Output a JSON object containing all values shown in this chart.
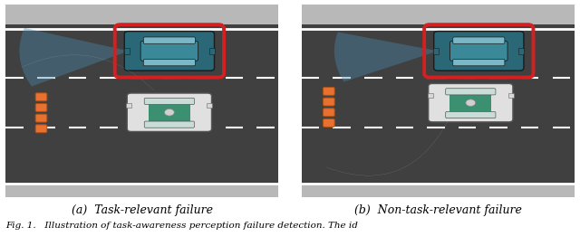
{
  "fig_width": 6.4,
  "fig_height": 2.72,
  "dpi": 100,
  "bg_color": "#ffffff",
  "road_color": "#404040",
  "road_border_color": "#b8b8b8",
  "lane_dash_color": "#d0d0d0",
  "caption_a": "(a)  Task-relevant failure",
  "caption_b": "(b)  Non-task-relevant failure",
  "fig_caption": "Fig. 1.   Illustration of task-awareness perception failure detection. The id",
  "arrow_color": "#ffffff",
  "bbox_color": "#d42020",
  "sensor_dot_color": "#e87030",
  "caption_fontsize": 9,
  "fig_caption_fontsize": 7.5,
  "cone_color": "#4a8ab0",
  "car_dark_color": "#2a6878",
  "car_silver_color": "#d4d4d4",
  "car_stripe_color": "#3a9070"
}
